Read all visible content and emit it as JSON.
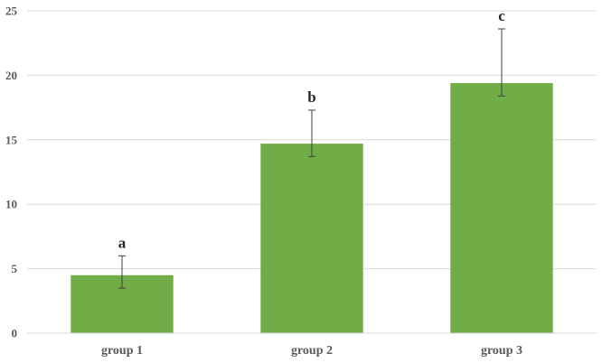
{
  "chart_data": {
    "type": "bar",
    "categories": [
      "group 1",
      "group 2",
      "group 3"
    ],
    "values": [
      4.5,
      14.7,
      19.4
    ],
    "error_upper": [
      6.0,
      17.3,
      23.6
    ],
    "error_lower": [
      3.5,
      13.7,
      18.4
    ],
    "significance_labels": [
      "a",
      "b",
      "c"
    ],
    "title": "",
    "xlabel": "",
    "ylabel": "",
    "ylim": [
      0,
      25
    ],
    "yticks": [
      "0",
      "5",
      "10",
      "15",
      "20",
      "25"
    ],
    "grid": "horizontal",
    "legend": "none",
    "bar_color": "#70AD47",
    "gridline_color": "#D9D9D9",
    "errorbar_color": "#404040"
  }
}
